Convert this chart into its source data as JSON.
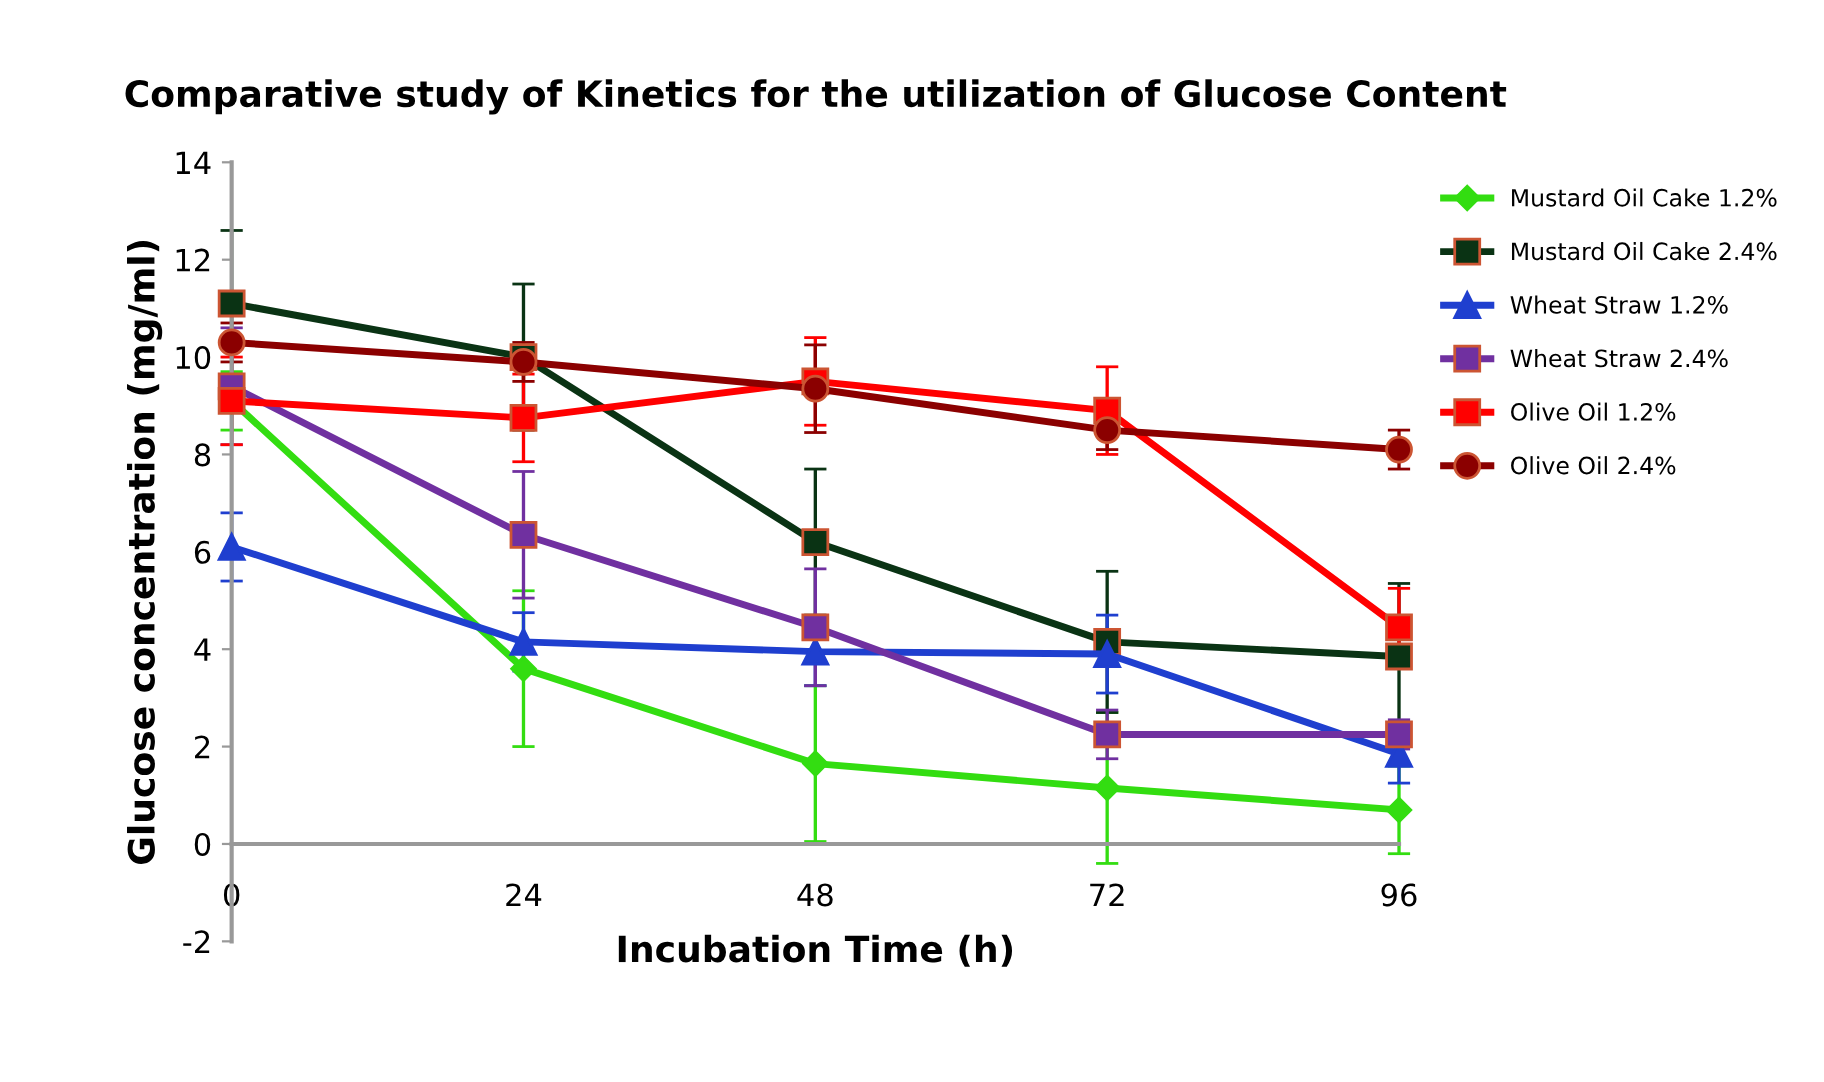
{
  "chart_data": {
    "type": "line",
    "title": "Comparative study of Kinetics for the utilization of Glucose Content",
    "xlabel": "Incubation Time (h)",
    "ylabel": "Glucose concentration (mg/ml)",
    "x": [
      0,
      24,
      48,
      72,
      96
    ],
    "xlim": [
      0,
      96
    ],
    "xticks": [
      0,
      24,
      48,
      72,
      96
    ],
    "ylim": [
      -2,
      14
    ],
    "yticks": [
      -2,
      0,
      2,
      4,
      6,
      8,
      10,
      12,
      14
    ],
    "grid": false,
    "legend": "right",
    "line_style": "solid",
    "series": [
      {
        "name": "Mustard Oil Cake 1.2%",
        "color": "#33dd11",
        "marker": "diamond",
        "values": [
          9.1,
          3.6,
          1.65,
          1.15,
          0.7
        ],
        "errors": [
          0.6,
          1.6,
          1.6,
          1.55,
          0.9
        ]
      },
      {
        "name": "Mustard Oil Cake 2.4%",
        "color": "#0a3314",
        "marker": "square",
        "values": [
          11.1,
          10.0,
          6.2,
          4.15,
          3.85
        ],
        "errors": [
          1.5,
          1.5,
          1.5,
          1.45,
          1.5
        ]
      },
      {
        "name": "Wheat Straw 1.2%",
        "color": "#1f3fcf",
        "marker": "triangle",
        "values": [
          6.1,
          4.15,
          3.95,
          3.9,
          1.85
        ],
        "errors": [
          0.7,
          0.6,
          0.7,
          0.8,
          0.6
        ]
      },
      {
        "name": "Wheat Straw 2.4%",
        "color": "#7030a0",
        "marker": "square",
        "values": [
          9.4,
          6.35,
          4.45,
          2.25,
          2.25
        ],
        "errors": [
          1.2,
          1.3,
          1.2,
          0.5,
          0.3
        ]
      },
      {
        "name": "Olive Oil 1.2%",
        "color": "#ff0000",
        "marker": "square",
        "values": [
          9.1,
          8.75,
          9.5,
          8.9,
          4.45
        ],
        "errors": [
          0.9,
          0.9,
          0.9,
          0.9,
          0.8
        ]
      },
      {
        "name": "Olive Oil 2.4%",
        "color": "#8b0000",
        "marker": "circle",
        "values": [
          10.3,
          9.9,
          9.35,
          8.5,
          8.1
        ],
        "errors": [
          0.4,
          0.4,
          0.9,
          0.4,
          0.4
        ]
      }
    ]
  }
}
